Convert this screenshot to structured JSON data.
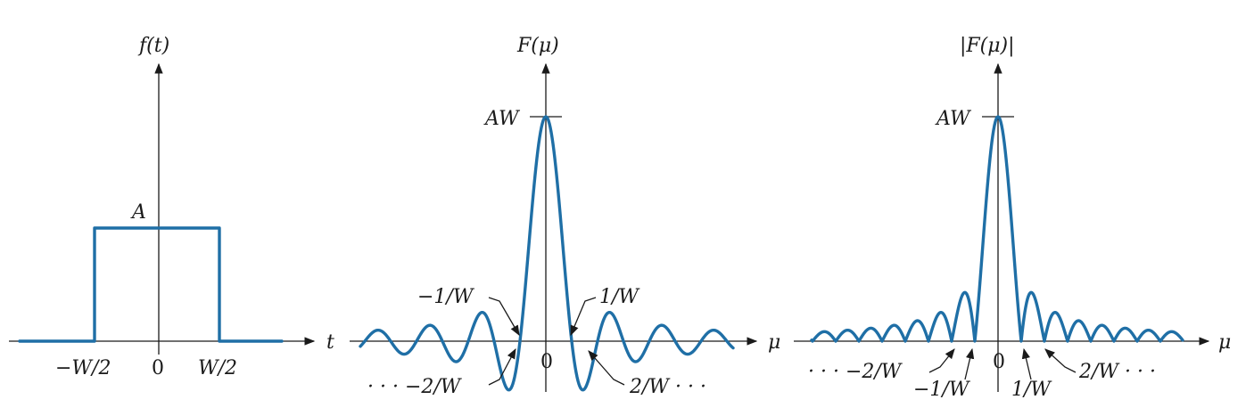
{
  "panels": {
    "time": {
      "ylabel": "f(t)",
      "xlabel": "t",
      "amplitude": "A",
      "ticks": [
        "−W/2",
        "0",
        "W/2"
      ]
    },
    "transform": {
      "ylabel": "F(μ)",
      "xlabel": "μ",
      "peak": "AW",
      "zero": "0",
      "ann_neg1": "−1/W",
      "ann_pos1": "1/W",
      "ann_neg2": "· · · −2/W",
      "ann_pos2": "2/W · · ·"
    },
    "magnitude": {
      "ylabel": "|F(μ)|",
      "xlabel": "μ",
      "peak": "AW",
      "zero": "0",
      "ann_neg2": "· · · −2/W",
      "ann_neg1": "−1/W",
      "ann_pos1": "1/W",
      "ann_pos2": "2/W · · ·"
    }
  },
  "colors": {
    "curve": "#1f6fa6",
    "axes": "#1a1a1a"
  }
}
